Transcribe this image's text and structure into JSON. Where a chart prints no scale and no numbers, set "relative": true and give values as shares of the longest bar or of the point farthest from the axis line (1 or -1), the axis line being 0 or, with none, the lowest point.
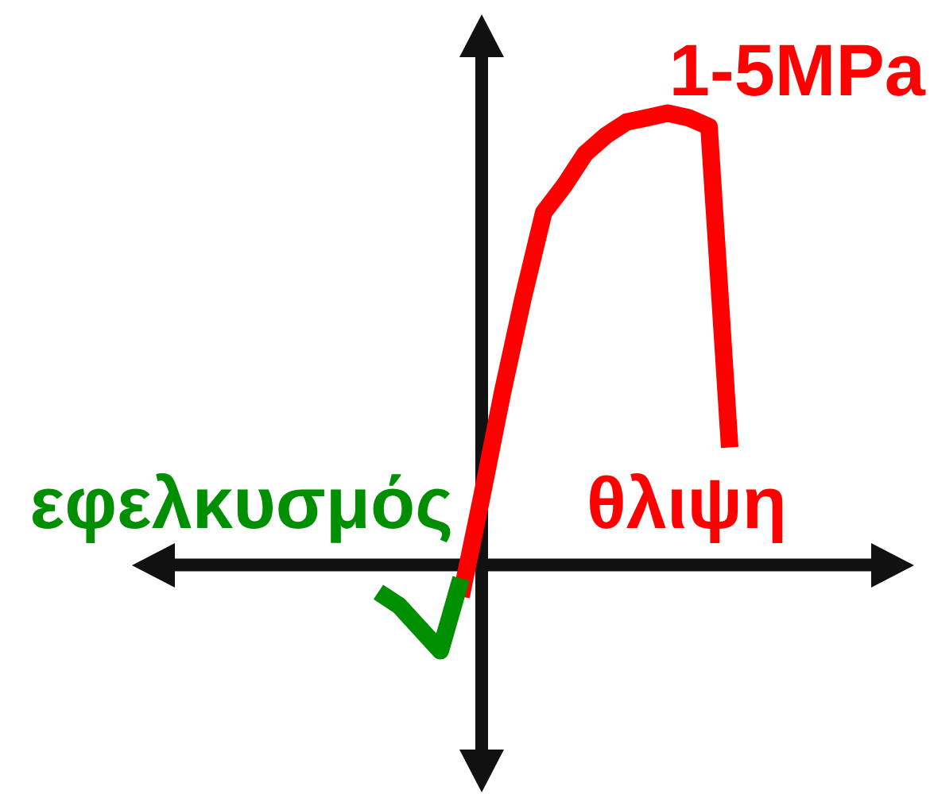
{
  "chart_data": {
    "type": "line",
    "relative": true,
    "line_style": "solid",
    "categories": [
      null,
      null,
      null,
      null,
      null,
      null,
      null,
      null,
      null,
      null,
      null,
      null,
      null,
      null,
      null,
      null,
      null,
      null
    ],
    "series": [
      {
        "name": "εφελκυσμός",
        "color": "#008f00",
        "values": [
          -0.06,
          -0.09,
          -0.14,
          -0.19,
          -0.03,
          null,
          null,
          null,
          null,
          null,
          null,
          null,
          null,
          null,
          null,
          null,
          null,
          null
        ]
      },
      {
        "name": "θλιψη",
        "color": "#ff0000",
        "values": [
          null,
          null,
          null,
          null,
          -0.07,
          0.15,
          0.38,
          0.59,
          0.78,
          0.84,
          0.91,
          0.95,
          0.98,
          0.99,
          1,
          0.99,
          0.97,
          0.26
        ]
      }
    ],
    "annotations": [
      "1-5MPa"
    ]
  }
}
